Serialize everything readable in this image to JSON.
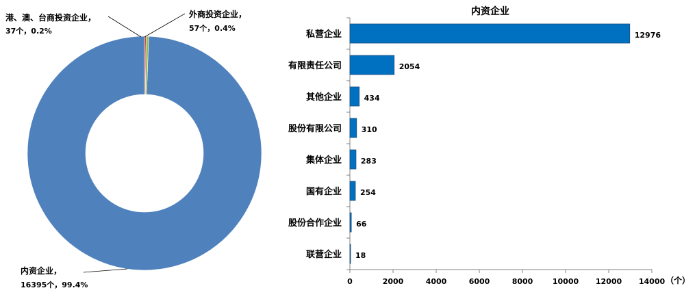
{
  "colors": {
    "donut_domestic": "#4f81bd",
    "donut_hk_macau_taiwan": "#c0504d",
    "donut_foreign": "#9bbb59",
    "bar_fill": "#0070c0",
    "bar_stroke": "#1f4e79",
    "axis": "#808080",
    "text": "#000000"
  },
  "chart_data": [
    {
      "type": "pie",
      "variant": "donut",
      "title": "",
      "slices": [
        {
          "name": "内资企业",
          "value": 16395,
          "percent": "99.4%",
          "label_line1": "内资企业，",
          "label_line2": "16395个，99.4%"
        },
        {
          "name": "港、澳、台商投资企业",
          "value": 37,
          "percent": "0.2%",
          "label_line1": "港、澳、台商投资企业，",
          "label_line2": "37个，0.2%"
        },
        {
          "name": "外商投资企业",
          "value": 57,
          "percent": "0.4%",
          "label_line1": "外商投资企业，",
          "label_line2": "57个，0.4%"
        }
      ],
      "legend": "none"
    },
    {
      "type": "bar",
      "orientation": "horizontal",
      "title": "内资企业",
      "categories": [
        "私营企业",
        "有限责任公司",
        "其他企业",
        "股份有限公司",
        "集体企业",
        "国有企业",
        "股份合作企业",
        "联营企业"
      ],
      "values": [
        12976,
        2054,
        434,
        310,
        283,
        254,
        66,
        18
      ],
      "xlim": [
        0,
        14000
      ],
      "xticks": [
        0,
        2000,
        4000,
        6000,
        8000,
        10000,
        12000,
        14000
      ],
      "xunit": "（个）",
      "grid": false,
      "legend": "none"
    }
  ]
}
